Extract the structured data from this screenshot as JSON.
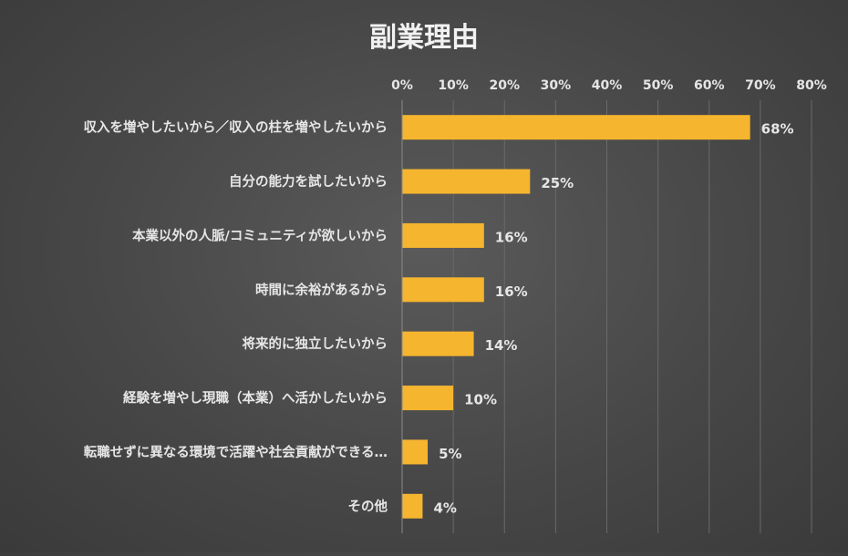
{
  "chart_data": {
    "type": "bar",
    "orientation": "horizontal",
    "title": "副業理由",
    "categories": [
      "収入を増やしたいから／収入の柱を増やしたいから",
      "自分の能力を試したいから",
      "本業以外の人脈/コミュニティが欲しいから",
      "時間に余裕があるから",
      "将来的に独立したいから",
      "経験を増やし現職（本業）へ活かしたいから",
      "転職せずに異なる環境で活躍や社会貢献ができる…",
      "その他"
    ],
    "values": [
      68,
      25,
      16,
      16,
      14,
      10,
      5,
      4
    ],
    "value_labels": [
      "68%",
      "25%",
      "16%",
      "16%",
      "14%",
      "10%",
      "5%",
      "4%"
    ],
    "xlim": [
      0,
      80
    ],
    "x_ticks": [
      "0%",
      "10%",
      "20%",
      "30%",
      "40%",
      "50%",
      "60%",
      "70%",
      "80%"
    ],
    "x_axis_position": "top",
    "grid": true,
    "legend": "none",
    "bar_color": "#f6b52e"
  }
}
